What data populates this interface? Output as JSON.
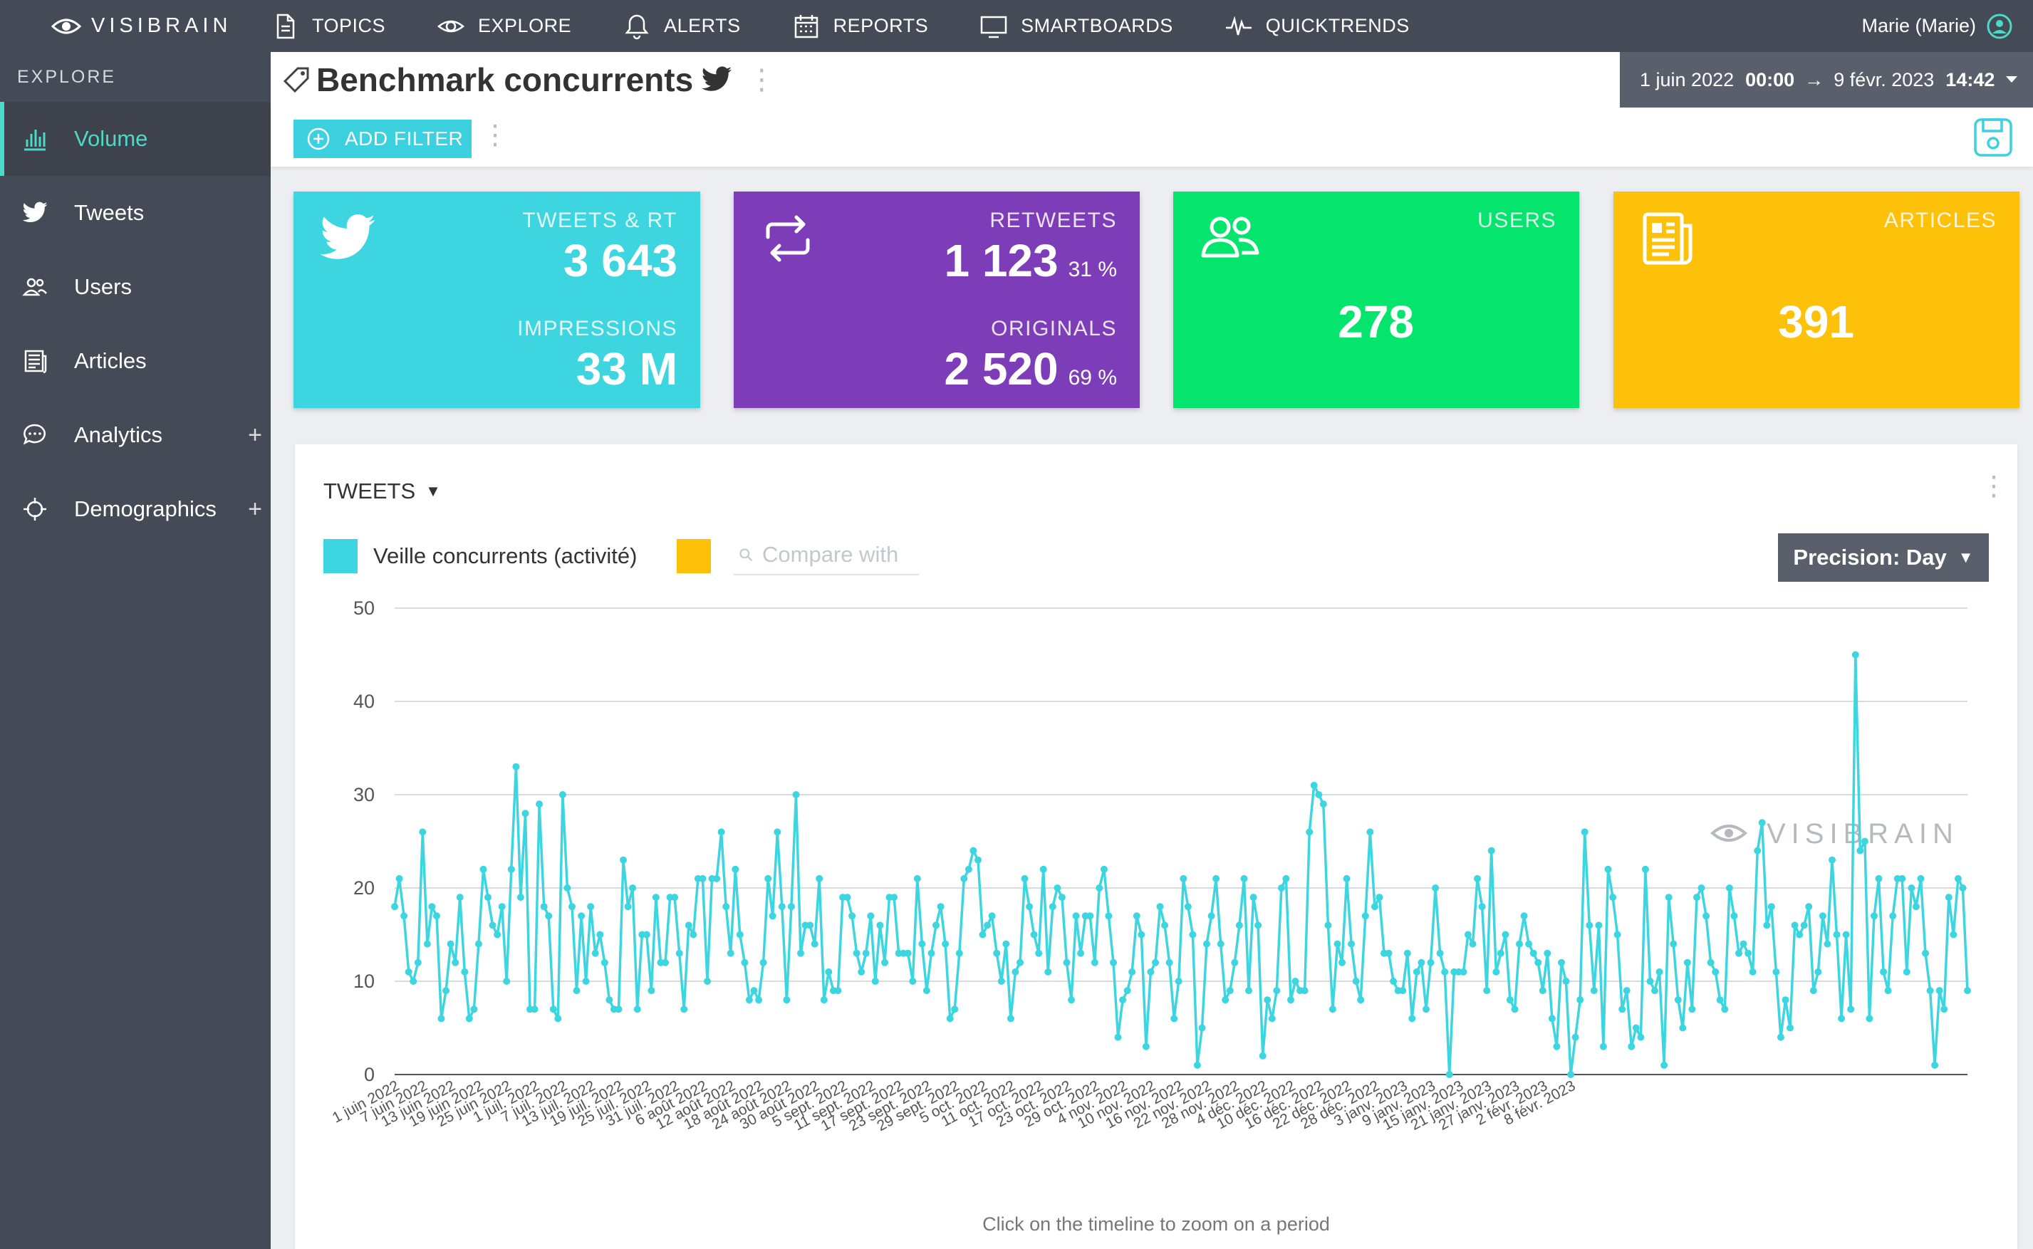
{
  "app": {
    "logo": "VISIBRAIN",
    "user": "Marie (Marie)"
  },
  "nav": [
    {
      "id": "topics",
      "label": "TOPICS",
      "icon": "document-icon"
    },
    {
      "id": "explore",
      "label": "EXPLORE",
      "icon": "eye-icon"
    },
    {
      "id": "alerts",
      "label": "ALERTS",
      "icon": "bell-icon"
    },
    {
      "id": "reports",
      "label": "REPORTS",
      "icon": "calendar-icon"
    },
    {
      "id": "smartboards",
      "label": "SMARTBOARDS",
      "icon": "monitor-icon"
    },
    {
      "id": "quicktrends",
      "label": "QUICKTRENDS",
      "icon": "pulse-icon"
    }
  ],
  "sidebar": {
    "header": "EXPLORE",
    "items": [
      {
        "id": "volume",
        "label": "Volume",
        "icon": "bar-chart-icon",
        "active": true
      },
      {
        "id": "tweets",
        "label": "Tweets",
        "icon": "twitter-bird-icon"
      },
      {
        "id": "users",
        "label": "Users",
        "icon": "users-icon"
      },
      {
        "id": "articles",
        "label": "Articles",
        "icon": "newspaper-icon"
      },
      {
        "id": "analytics",
        "label": "Analytics",
        "icon": "chat-bubble-icon",
        "expandable": "+"
      },
      {
        "id": "demographics",
        "label": "Demographics",
        "icon": "target-icon",
        "expandable": "+"
      }
    ]
  },
  "header": {
    "title": "Benchmark concurrents",
    "date_from_day": "1 juin 2022",
    "date_from_time": "00:00",
    "arrow": "→",
    "date_to_day": "9 févr. 2023",
    "date_to_time": "14:42"
  },
  "filter": {
    "add_label": "ADD FILTER"
  },
  "cards": {
    "tweets": {
      "label": "TWEETS & RT",
      "value": "3 643",
      "sub_label": "IMPRESSIONS",
      "sub_value": "33 M"
    },
    "retweets": {
      "label": "RETWEETS",
      "value": "1 123",
      "pct": "31 %",
      "sub_label": "ORIGINALS",
      "sub_value": "2 520",
      "sub_pct": "69 %"
    },
    "users": {
      "label": "USERS",
      "value": "278"
    },
    "articles": {
      "label": "ARTICLES",
      "value": "391"
    }
  },
  "panel": {
    "title": "TWEETS",
    "legend_label": "Veille concurrents (activité)",
    "compare_placeholder": "Compare with",
    "precision_label": "Precision: Day",
    "watermark": "VISIBRAIN",
    "hint": "Click on the timeline to zoom on a period"
  },
  "colors": {
    "tweets": "#3dd6e0",
    "retweets": "#7d3db8",
    "users": "#05e46c",
    "articles": "#fdc10a",
    "accent": "#4dd9c7",
    "compare": "#fdc10a"
  },
  "chart_data": {
    "type": "line",
    "title": "",
    "xlabel": "",
    "ylabel": "",
    "ylim": [
      0,
      50
    ],
    "yticks": [
      0,
      10,
      20,
      30,
      40,
      50
    ],
    "x_start": "1 juin 2022",
    "x_end": "9 févr. 2023",
    "x_tick_labels": [
      "1 juin 2022",
      "7 juin 2022",
      "13 juin 2022",
      "19 juin 2022",
      "25 juin 2022",
      "1 juil. 2022",
      "7 juil. 2022",
      "13 juil. 2022",
      "19 juil. 2022",
      "25 juil. 2022",
      "31 juil. 2022",
      "6 août 2022",
      "12 août 2022",
      "18 août 2022",
      "24 août 2022",
      "30 août 2022",
      "5 sept. 2022",
      "11 sept. 2022",
      "17 sept. 2022",
      "23 sept. 2022",
      "29 sept. 2022",
      "5 oct. 2022",
      "11 oct. 2022",
      "17 oct. 2022",
      "23 oct. 2022",
      "29 oct. 2022",
      "4 nov. 2022",
      "10 nov. 2022",
      "16 nov. 2022",
      "22 nov. 2022",
      "28 nov. 2022",
      "4 déc. 2022",
      "10 déc. 2022",
      "16 déc. 2022",
      "22 déc. 2022",
      "28 déc. 2022",
      "3 janv. 2023",
      "9 janv. 2023",
      "15 janv. 2023",
      "21 janv. 2023",
      "27 janv. 2023",
      "2 févr. 2023",
      "8 févr. 2023"
    ],
    "series": [
      {
        "name": "Veille concurrents (activité)",
        "values": [
          18,
          21,
          17,
          11,
          10,
          12,
          26,
          14,
          18,
          17,
          6,
          9,
          14,
          12,
          19,
          11,
          6,
          7,
          14,
          22,
          19,
          16,
          15,
          18,
          10,
          22,
          33,
          19,
          28,
          7,
          7,
          29,
          18,
          17,
          7,
          6,
          30,
          20,
          18,
          9,
          17,
          10,
          18,
          13,
          15,
          12,
          8,
          7,
          7,
          23,
          18,
          20,
          7,
          15,
          15,
          9,
          19,
          12,
          12,
          19,
          19,
          13,
          7,
          16,
          15,
          21,
          21,
          10,
          21,
          21,
          26,
          18,
          13,
          22,
          15,
          12,
          8,
          9,
          8,
          12,
          21,
          17,
          26,
          18,
          8,
          18,
          30,
          13,
          16,
          16,
          14,
          21,
          8,
          11,
          9,
          9,
          19,
          19,
          17,
          13,
          11,
          13,
          17,
          10,
          16,
          12,
          19,
          19,
          13,
          13,
          13,
          10,
          21,
          14,
          9,
          13,
          16,
          18,
          14,
          6,
          7,
          13,
          21,
          22,
          24,
          23,
          15,
          16,
          17,
          13,
          10,
          14,
          6,
          11,
          12,
          21,
          18,
          15,
          13,
          22,
          11,
          18,
          20,
          19,
          12,
          8,
          17,
          13,
          17,
          17,
          12,
          20,
          22,
          17,
          12,
          4,
          8,
          9,
          11,
          17,
          15,
          3,
          11,
          12,
          18,
          16,
          12,
          6,
          10,
          21,
          18,
          15,
          1,
          5,
          14,
          17,
          21,
          14,
          8,
          9,
          12,
          16,
          21,
          9,
          19,
          16,
          2,
          8,
          6,
          9,
          20,
          21,
          8,
          10,
          9,
          9,
          26,
          31,
          30,
          29,
          16,
          7,
          14,
          12,
          21,
          14,
          10,
          8,
          17,
          26,
          18,
          19,
          13,
          13,
          10,
          9,
          9,
          13,
          6,
          11,
          12,
          7,
          12,
          20,
          13,
          11,
          0,
          11,
          11,
          11,
          15,
          14,
          21,
          18,
          9,
          24,
          11,
          13,
          15,
          8,
          7,
          14,
          17,
          14,
          13,
          12,
          9,
          13,
          6,
          3,
          12,
          10,
          0,
          4,
          8,
          26,
          16,
          9,
          16,
          3,
          22,
          19,
          15,
          7,
          9,
          3,
          5,
          4,
          22,
          10,
          9,
          11,
          1,
          19,
          14,
          8,
          5,
          12,
          7,
          19,
          20,
          17,
          12,
          11,
          8,
          7,
          20,
          17,
          13,
          14,
          13,
          11,
          24,
          27,
          16,
          18,
          11,
          4,
          8,
          5,
          16,
          15,
          16,
          18,
          9,
          11,
          17,
          14,
          23,
          15,
          6,
          15,
          7,
          45,
          24,
          25,
          6,
          17,
          21,
          11,
          9,
          17,
          21,
          21,
          11,
          20,
          18,
          21,
          13,
          9,
          1,
          9,
          7,
          19,
          15,
          21,
          20,
          9
        ]
      }
    ]
  }
}
